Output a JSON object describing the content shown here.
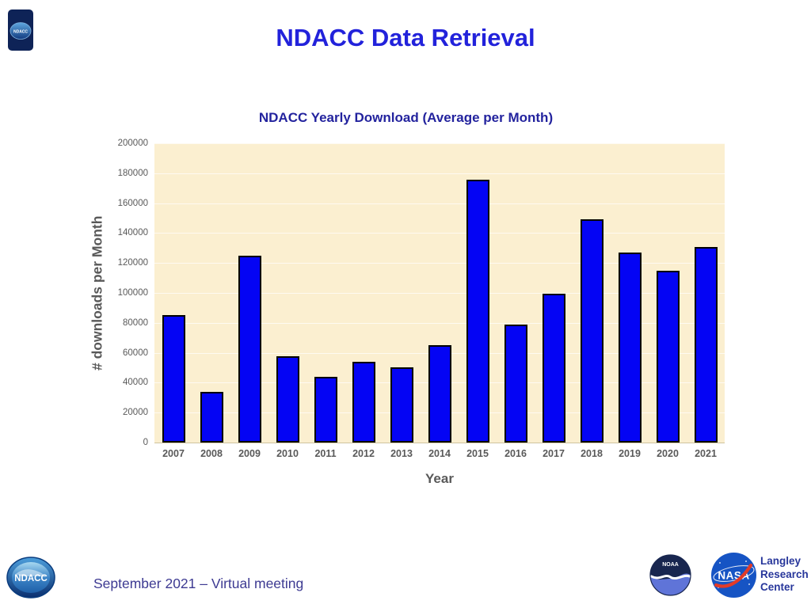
{
  "slide": {
    "title": "NDACC Data Retrieval",
    "footer": "September 2021 – Virtual meeting"
  },
  "logos": {
    "ndacc": "NDACC",
    "noaa": "NOAA",
    "nasa": "NASA",
    "langley": [
      "Langley",
      "Research",
      "Center"
    ]
  },
  "chart_data": {
    "type": "bar",
    "title": "NDACC Yearly Download (Average per Month)",
    "xlabel": "Year",
    "ylabel": "# downloads per Month",
    "categories": [
      "2007",
      "2008",
      "2009",
      "2010",
      "2011",
      "2012",
      "2013",
      "2014",
      "2015",
      "2016",
      "2017",
      "2018",
      "2019",
      "2020",
      "2021"
    ],
    "values": [
      85000,
      34000,
      125000,
      57500,
      44000,
      54000,
      50500,
      65000,
      175500,
      79000,
      99500,
      149000,
      127000,
      115000,
      130500
    ],
    "ylim": [
      0,
      200000
    ],
    "ytick_step": 20000,
    "grid": true,
    "legend": false,
    "bar_color": "#0404F4",
    "bar_border_color": "#000000",
    "plot_bg_color": "#FBEFD0",
    "gridline_color": "rgba(255,255,255,0.7)",
    "title_color": "#23239E",
    "axis_text_color": "#595959"
  },
  "colors": {
    "slide_title": "#2222DB",
    "footer_text": "#3D3A92",
    "langley_text": "#28379B",
    "noaa_navy": "#18264F",
    "noaa_light_blue": "#5F74D8",
    "nasa_blue": "#1654C4",
    "nasa_red": "#E23B28",
    "ndacc_dark_blue": "#0E2357"
  }
}
